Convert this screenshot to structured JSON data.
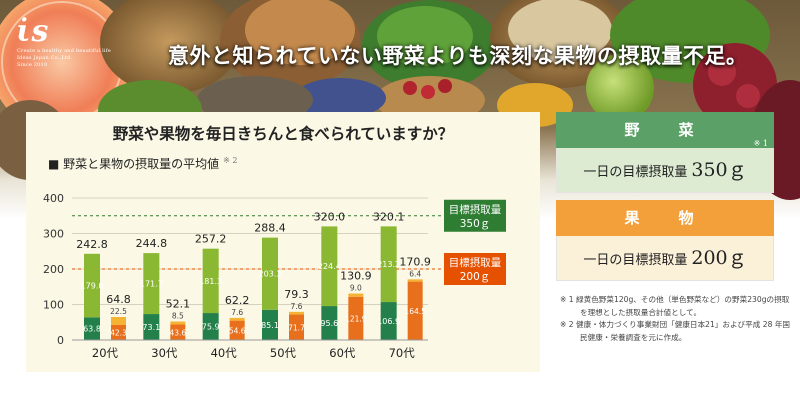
{
  "banner": {
    "headline": "意外と知られていない野菜よりも深刻な果物の摂取量不足。",
    "logo": {
      "mark": "ι̇s",
      "lines": [
        "Create a healthy and beautiful life",
        "Ideas Japan Co.,Ltd.",
        "Since 2010"
      ]
    }
  },
  "chart_panel": {
    "question": "野菜や果物を毎日きちんと食べられていますか？",
    "subtitle": "■ 野菜と果物の摂取量の平均値",
    "subtitle_note": "※ 2"
  },
  "vegetable_box": {
    "title": "野　菜",
    "note": "※ 1",
    "label": "一日の目標摂取量",
    "value": "350ｇ"
  },
  "fruit_box": {
    "title": "果　物",
    "label": "一日の目標摂取量",
    "value": "200ｇ"
  },
  "footnotes": [
    "※ 1  緑黄色野菜120g、その他（単色野菜など）の野菜230gの摂取を理想とした摂取量合計値として。",
    "※ 2  健康・体力づくり事業財団「健康日本21」および平成 28 年国民健康・栄養調査を元に作成。"
  ],
  "colors": {
    "veg_dark": "#23804a",
    "veg_light": "#8ab832",
    "fruit_dark": "#e8701c",
    "fruit_light": "#f5b335",
    "veg_box": "#dcebd2",
    "veg_head": "#5ba066",
    "fruit_box": "#fbf0d8",
    "fruit_head": "#f3a03a",
    "panel": "#fbf8e5",
    "target_veg": "#2e7d32",
    "target_fruit": "#e65100"
  },
  "chart_data": {
    "type": "bar",
    "stacked": true,
    "grouped": true,
    "title": "野菜と果物の摂取量の平均値",
    "categories": [
      "20代",
      "30代",
      "40代",
      "50代",
      "60代",
      "70代"
    ],
    "y_ticks": [
      "0",
      "100",
      "200",
      "300",
      "400"
    ],
    "ylim": [
      0,
      400
    ],
    "vegetables": {
      "dark": [
        63.8,
        73.1,
        75.9,
        85.1,
        95.6,
        106.9
      ],
      "light": [
        179.0,
        171.7,
        181.3,
        203.3,
        224.4,
        213.2
      ],
      "total_labels": [
        "242.8",
        "244.8",
        "257.2",
        "288.4",
        "320.0",
        "320.1"
      ],
      "dark_labels": [
        "63.8",
        "73.1",
        "75.9",
        "85.1",
        "95.6",
        "106.9"
      ],
      "light_labels": [
        "179.0",
        "171.7",
        "181.3",
        "203.3",
        "224.4",
        "213.2"
      ]
    },
    "fruits": {
      "dark": [
        42.3,
        43.6,
        54.6,
        71.7,
        121.9,
        164.5
      ],
      "light": [
        22.5,
        8.5,
        7.6,
        7.6,
        9.0,
        6.4
      ],
      "total_labels": [
        "64.8",
        "52.1",
        "62.2",
        "79.3",
        "130.9",
        "170.9"
      ],
      "dark_labels": [
        "42.3",
        "43.6",
        "54.6",
        "71.7",
        "121.9",
        "164.5"
      ],
      "light_labels": [
        "22.5",
        "8.5",
        "7.6",
        "7.6",
        "9.0",
        "6.4"
      ]
    },
    "targets": [
      {
        "value": 350,
        "label": [
          "目標摂取量",
          "350ｇ"
        ],
        "series": "vegetables"
      },
      {
        "value": 200,
        "label": [
          "目標摂取量",
          "200ｇ"
        ],
        "series": "fruits"
      }
    ],
    "grid": true
  }
}
